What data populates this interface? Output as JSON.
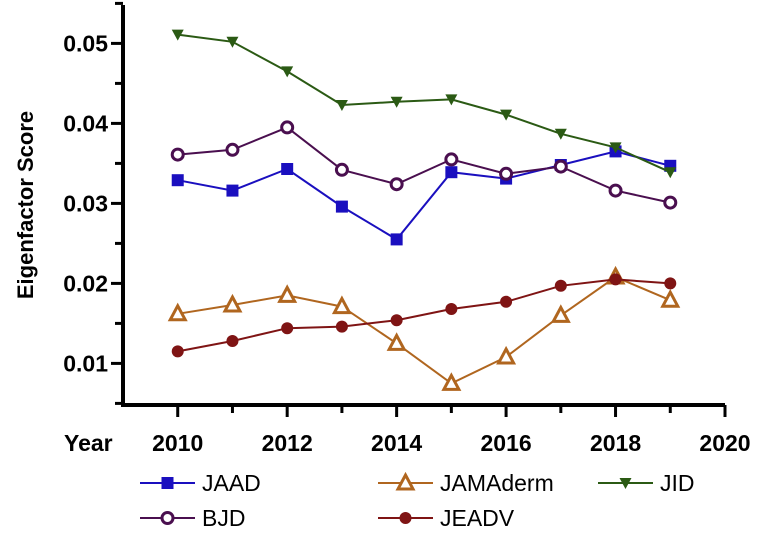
{
  "chart_data": {
    "type": "line",
    "title": "",
    "xlabel": "Year",
    "ylabel": "Eigenfactor Score",
    "xlim": [
      2009,
      2020
    ],
    "ylim": [
      0.0048,
      0.0548
    ],
    "xticks": [
      "2010",
      "2012",
      "2014",
      "2016",
      "2018",
      "2020"
    ],
    "yticks": [
      "0.01",
      "0.02",
      "0.03",
      "0.04",
      "0.05"
    ],
    "x": [
      2010,
      2011,
      2012,
      2013,
      2014,
      2015,
      2016,
      2017,
      2018,
      2019
    ],
    "legend_position": "bottom",
    "series": [
      {
        "name": "JAAD",
        "marker": "square",
        "color": "#1a0fbf",
        "values": [
          0.0329,
          0.0316,
          0.0343,
          0.0296,
          0.0255,
          0.0339,
          0.0331,
          0.0348,
          0.0365,
          0.0347
        ]
      },
      {
        "name": "JAMAderm",
        "marker": "triangle-up-open",
        "color": "#b0661f",
        "values": [
          0.0162,
          0.0173,
          0.0185,
          0.0171,
          0.0125,
          0.0075,
          0.0108,
          0.016,
          0.0208,
          0.0179
        ]
      },
      {
        "name": "JID",
        "marker": "triangle-down",
        "color": "#2b5a14",
        "values": [
          0.0511,
          0.0502,
          0.0465,
          0.0423,
          0.0427,
          0.043,
          0.0411,
          0.0387,
          0.037,
          0.0339
        ]
      },
      {
        "name": "BJD",
        "marker": "circle-open",
        "color": "#4a0f4f",
        "values": [
          0.0361,
          0.0367,
          0.0395,
          0.0342,
          0.0324,
          0.0355,
          0.0337,
          0.0346,
          0.0316,
          0.0301
        ]
      },
      {
        "name": "JEADV",
        "marker": "circle",
        "color": "#7f1414",
        "values": [
          0.0115,
          0.0128,
          0.0144,
          0.0146,
          0.0154,
          0.0168,
          0.0177,
          0.0197,
          0.0205,
          0.02
        ]
      }
    ]
  }
}
